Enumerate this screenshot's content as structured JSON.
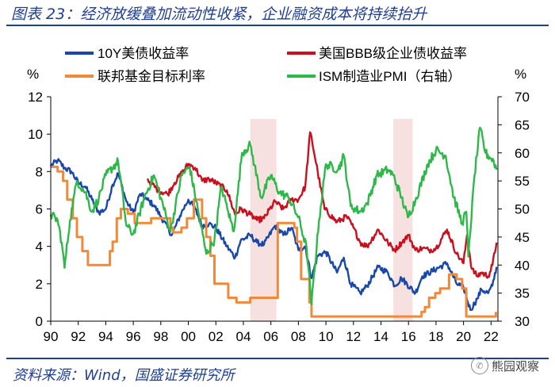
{
  "title": "图表 23：经济放缓叠加流动性收紧，企业融资成本将持续抬升",
  "source": "资料来源：Wind，国盛证券研究所",
  "watermark": "熊园观察",
  "colors": {
    "treasury": "#1a48a8",
    "bbb": "#c8101e",
    "fed": "#f0893a",
    "pmi": "#2eb84a",
    "recession": "#f5dada",
    "brand": "#1f3f8f"
  },
  "chart_data": {
    "type": "line",
    "x_unit": "year",
    "xlim": [
      1990,
      2022.5
    ],
    "x_ticks": [
      1990,
      1992,
      1994,
      1996,
      1998,
      2000,
      2002,
      2004,
      2006,
      2008,
      2010,
      2012,
      2014,
      2016,
      2018,
      2020,
      2022
    ],
    "x_tick_labels": [
      "90",
      "92",
      "94",
      "96",
      "98",
      "00",
      "02",
      "04",
      "06",
      "08",
      "10",
      "12",
      "14",
      "16",
      "18",
      "20",
      "22"
    ],
    "y_left": {
      "label": "%",
      "lim": [
        0,
        12
      ],
      "ticks": [
        0,
        2,
        4,
        6,
        8,
        10,
        12
      ]
    },
    "y_right": {
      "label": "%",
      "lim": [
        30,
        70
      ],
      "ticks": [
        30,
        35,
        40,
        45,
        50,
        55,
        60,
        65,
        70
      ]
    },
    "shaded_periods": [
      [
        2004.5,
        2006.4
      ],
      [
        2014.9,
        2016.3
      ]
    ],
    "series": [
      {
        "name": "10Y美债收益率",
        "key": "treasury",
        "axis": "left",
        "points": [
          [
            1990,
            8.3
          ],
          [
            1990.5,
            8.6
          ],
          [
            1991,
            8.2
          ],
          [
            1991.5,
            8.0
          ],
          [
            1992,
            7.4
          ],
          [
            1992.5,
            7.2
          ],
          [
            1993,
            6.5
          ],
          [
            1993.5,
            5.8
          ],
          [
            1994,
            6.0
          ],
          [
            1994.5,
            7.3
          ],
          [
            1994.9,
            7.9
          ],
          [
            1995.5,
            6.4
          ],
          [
            1996,
            5.8
          ],
          [
            1996.5,
            6.8
          ],
          [
            1997,
            6.5
          ],
          [
            1997.5,
            6.2
          ],
          [
            1998,
            5.6
          ],
          [
            1998.8,
            4.6
          ],
          [
            1999.5,
            5.8
          ],
          [
            2000,
            6.5
          ],
          [
            2000.5,
            6.0
          ],
          [
            2001,
            5.1
          ],
          [
            2001.5,
            5.2
          ],
          [
            2002,
            5.0
          ],
          [
            2002.8,
            4.0
          ],
          [
            2003.4,
            3.4
          ],
          [
            2003.8,
            4.3
          ],
          [
            2004.5,
            4.6
          ],
          [
            2005,
            4.2
          ],
          [
            2005.5,
            4.1
          ],
          [
            2006.3,
            5.1
          ],
          [
            2006.9,
            4.6
          ],
          [
            2007.5,
            5.0
          ],
          [
            2008,
            3.8
          ],
          [
            2008.5,
            4.0
          ],
          [
            2008.95,
            2.3
          ],
          [
            2009.4,
            3.5
          ],
          [
            2010,
            3.7
          ],
          [
            2010.8,
            2.6
          ],
          [
            2011.3,
            3.4
          ],
          [
            2011.8,
            2.0
          ],
          [
            2012.5,
            1.5
          ],
          [
            2013,
            1.9
          ],
          [
            2013.8,
            2.9
          ],
          [
            2014.5,
            2.6
          ],
          [
            2015,
            1.9
          ],
          [
            2015.5,
            2.3
          ],
          [
            2016.5,
            1.5
          ],
          [
            2017,
            2.4
          ],
          [
            2018.8,
            3.1
          ],
          [
            2019.5,
            2.0
          ],
          [
            2020.0,
            1.8
          ],
          [
            2020.5,
            0.6
          ],
          [
            2021,
            1.2
          ],
          [
            2021.3,
            1.7
          ],
          [
            2021.8,
            1.5
          ],
          [
            2022.1,
            1.9
          ],
          [
            2022.4,
            2.9
          ]
        ]
      },
      {
        "name": "美国BBB级企业债收益率",
        "key": "bbb",
        "axis": "left",
        "points": [
          [
            1997,
            7.6
          ],
          [
            1997.8,
            7.0
          ],
          [
            1998.5,
            6.8
          ],
          [
            1999,
            7.4
          ],
          [
            2000,
            8.4
          ],
          [
            2000.5,
            8.2
          ],
          [
            2001,
            7.5
          ],
          [
            2001.5,
            7.6
          ],
          [
            2002,
            7.4
          ],
          [
            2002.8,
            7.0
          ],
          [
            2003.4,
            5.7
          ],
          [
            2003.8,
            6.0
          ],
          [
            2004.5,
            5.7
          ],
          [
            2005,
            5.4
          ],
          [
            2005.5,
            5.5
          ],
          [
            2006.3,
            6.4
          ],
          [
            2006.9,
            6.0
          ],
          [
            2007.5,
            6.5
          ],
          [
            2008,
            6.5
          ],
          [
            2008.5,
            7.2
          ],
          [
            2008.85,
            10.1
          ],
          [
            2009.0,
            9.6
          ],
          [
            2009.4,
            8.0
          ],
          [
            2009.9,
            6.0
          ],
          [
            2010.8,
            5.3
          ],
          [
            2011.5,
            5.6
          ],
          [
            2012,
            5.0
          ],
          [
            2012.5,
            4.2
          ],
          [
            2013,
            4.0
          ],
          [
            2013.8,
            4.9
          ],
          [
            2014.5,
            4.2
          ],
          [
            2015,
            3.8
          ],
          [
            2015.5,
            4.2
          ],
          [
            2016,
            4.6
          ],
          [
            2016.5,
            3.8
          ],
          [
            2017,
            3.9
          ],
          [
            2017.5,
            3.8
          ],
          [
            2018,
            3.9
          ],
          [
            2018.8,
            4.9
          ],
          [
            2019.5,
            3.6
          ],
          [
            2020.0,
            3.1
          ],
          [
            2020.25,
            4.6
          ],
          [
            2020.6,
            2.8
          ],
          [
            2021.0,
            2.4
          ],
          [
            2021.3,
            2.6
          ],
          [
            2021.8,
            2.4
          ],
          [
            2022.1,
            3.0
          ],
          [
            2022.4,
            4.2
          ]
        ]
      },
      {
        "name": "联邦基金目标利率",
        "key": "fed",
        "axis": "left",
        "points": [
          [
            1990,
            8.25
          ],
          [
            1990.5,
            8.0
          ],
          [
            1990.9,
            7.5
          ],
          [
            1991.2,
            6.5
          ],
          [
            1991.6,
            5.5
          ],
          [
            1991.9,
            4.5
          ],
          [
            1992.3,
            3.75
          ],
          [
            1992.7,
            3.0
          ],
          [
            1994.1,
            3.0
          ],
          [
            1994.3,
            3.75
          ],
          [
            1994.5,
            4.25
          ],
          [
            1994.8,
            5.5
          ],
          [
            1995.1,
            6.0
          ],
          [
            1995.6,
            5.75
          ],
          [
            1996.1,
            5.25
          ],
          [
            1997.3,
            5.5
          ],
          [
            1998.7,
            5.0
          ],
          [
            1998.9,
            4.75
          ],
          [
            1999.5,
            5.0
          ],
          [
            1999.9,
            5.5
          ],
          [
            2000.4,
            6.5
          ],
          [
            2001.0,
            5.5
          ],
          [
            2001.3,
            4.5
          ],
          [
            2001.6,
            3.5
          ],
          [
            2001.9,
            2.0
          ],
          [
            2002.9,
            1.25
          ],
          [
            2003.5,
            1.0
          ],
          [
            2004.5,
            1.25
          ],
          [
            2006.5,
            5.25
          ],
          [
            2007.7,
            5.0
          ],
          [
            2007.9,
            4.25
          ],
          [
            2008.2,
            2.25
          ],
          [
            2008.8,
            1.0
          ],
          [
            2008.95,
            0.25
          ],
          [
            2015.95,
            0.25
          ],
          [
            2016.95,
            0.5
          ],
          [
            2017.2,
            0.75
          ],
          [
            2017.5,
            1.25
          ],
          [
            2017.95,
            1.5
          ],
          [
            2018.3,
            1.75
          ],
          [
            2018.95,
            2.5
          ],
          [
            2019.5,
            2.25
          ],
          [
            2019.9,
            1.75
          ],
          [
            2020.2,
            0.25
          ],
          [
            2022.2,
            0.25
          ],
          [
            2022.35,
            0.5
          ]
        ]
      },
      {
        "name": "ISM制造业PMI（右轴）",
        "key": "pmi",
        "axis": "right",
        "points": [
          [
            1990,
            49
          ],
          [
            1990.5,
            48
          ],
          [
            1990.8,
            44
          ],
          [
            1991.0,
            39.5
          ],
          [
            1991.4,
            48
          ],
          [
            1991.9,
            55
          ],
          [
            1992.5,
            53
          ],
          [
            1993.0,
            49.5
          ],
          [
            1993.5,
            52
          ],
          [
            1994.0,
            56
          ],
          [
            1994.9,
            58.5
          ],
          [
            1995.5,
            47
          ],
          [
            1996.0,
            45.5
          ],
          [
            1996.8,
            52
          ],
          [
            1997.5,
            56
          ],
          [
            1998.0,
            52
          ],
          [
            1998.7,
            46
          ],
          [
            1999.5,
            56
          ],
          [
            2000.1,
            57.5
          ],
          [
            2000.8,
            48.5
          ],
          [
            2001.3,
            42
          ],
          [
            2001.9,
            44.5
          ],
          [
            2002.4,
            54
          ],
          [
            2002.9,
            49.5
          ],
          [
            2003.3,
            46
          ],
          [
            2003.9,
            60
          ],
          [
            2004.5,
            61.4
          ],
          [
            2005.3,
            52
          ],
          [
            2006.0,
            56
          ],
          [
            2006.6,
            53
          ],
          [
            2007.3,
            52
          ],
          [
            2008.0,
            48.5
          ],
          [
            2008.6,
            43
          ],
          [
            2008.95,
            33
          ],
          [
            2009.5,
            48
          ],
          [
            2010.0,
            58
          ],
          [
            2010.9,
            57
          ],
          [
            2011.3,
            59.5
          ],
          [
            2011.8,
            50.5
          ],
          [
            2012.5,
            49.5
          ],
          [
            2013.0,
            51
          ],
          [
            2013.7,
            56
          ],
          [
            2014.5,
            57
          ],
          [
            2014.9,
            56
          ],
          [
            2015.5,
            52
          ],
          [
            2015.95,
            48.5
          ],
          [
            2016.5,
            51.5
          ],
          [
            2017.4,
            58
          ],
          [
            2018.0,
            60.5
          ],
          [
            2018.7,
            59.5
          ],
          [
            2019.3,
            52
          ],
          [
            2019.9,
            47.5
          ],
          [
            2020.2,
            49.5
          ],
          [
            2020.35,
            41.5
          ],
          [
            2020.8,
            56
          ],
          [
            2021.2,
            64.5
          ],
          [
            2021.6,
            60
          ],
          [
            2022.0,
            59
          ],
          [
            2022.2,
            58.5
          ],
          [
            2022.4,
            57
          ]
        ]
      }
    ]
  }
}
